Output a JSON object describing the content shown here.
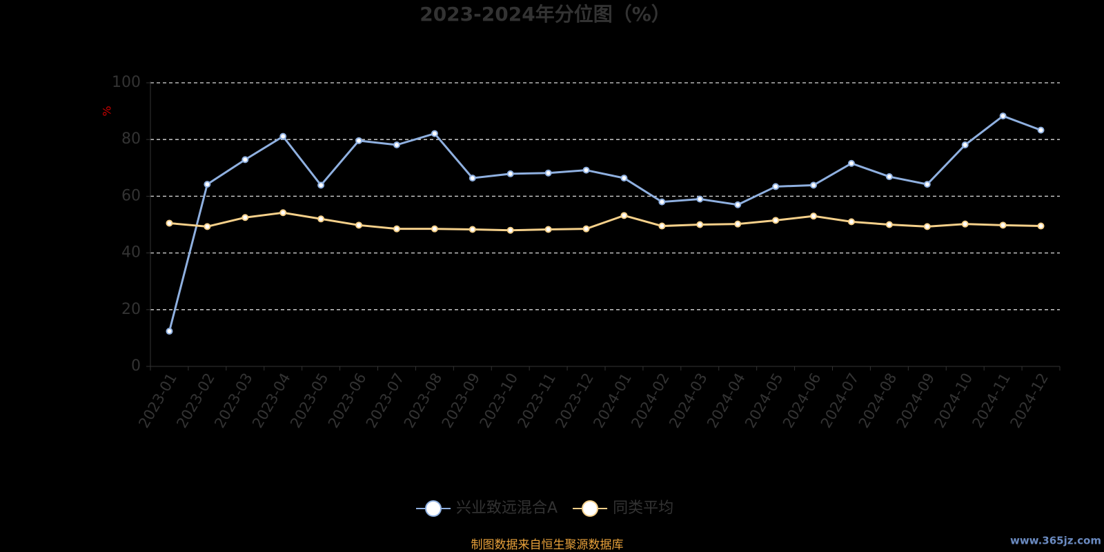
{
  "chart_data": {
    "type": "line",
    "title": "2023-2024年分位图（%）",
    "y_label": "%",
    "categories": [
      "2023-01",
      "2023-02",
      "2023-03",
      "2023-04",
      "2023-05",
      "2023-06",
      "2023-07",
      "2023-08",
      "2023-09",
      "2023-10",
      "2023-11",
      "2023-12",
      "2024-01",
      "2024-02",
      "2024-03",
      "2024-04",
      "2024-05",
      "2024-06",
      "2024-07",
      "2024-08",
      "2024-09",
      "2024-10",
      "2024-11",
      "2024-12"
    ],
    "series": [
      {
        "name": "兴业致远混合A",
        "color": "#8fb0e0",
        "values": [
          12.4,
          64.2,
          72.9,
          81.1,
          63.9,
          79.6,
          78.1,
          82.1,
          66.4,
          67.9,
          68.2,
          69.2,
          66.4,
          58.0,
          59.0,
          57.0,
          63.4,
          63.9,
          71.6,
          66.9,
          64.2,
          78.1,
          88.3,
          83.3
        ]
      },
      {
        "name": "同类平均",
        "color": "#f5d08a",
        "values": [
          50.5,
          49.3,
          52.5,
          54.2,
          52.0,
          49.8,
          48.5,
          48.5,
          48.3,
          48.0,
          48.3,
          48.5,
          53.2,
          49.5,
          50.0,
          50.2,
          51.5,
          53.0,
          51.0,
          50.0,
          49.3,
          50.2,
          49.8,
          49.5
        ]
      }
    ],
    "ylim": [
      0,
      100
    ],
    "yticks": [
      0,
      20,
      40,
      60,
      80,
      100
    ],
    "grid": true,
    "source": "制图数据来自恒生聚源数据库",
    "watermark": "www.365jz.com"
  }
}
